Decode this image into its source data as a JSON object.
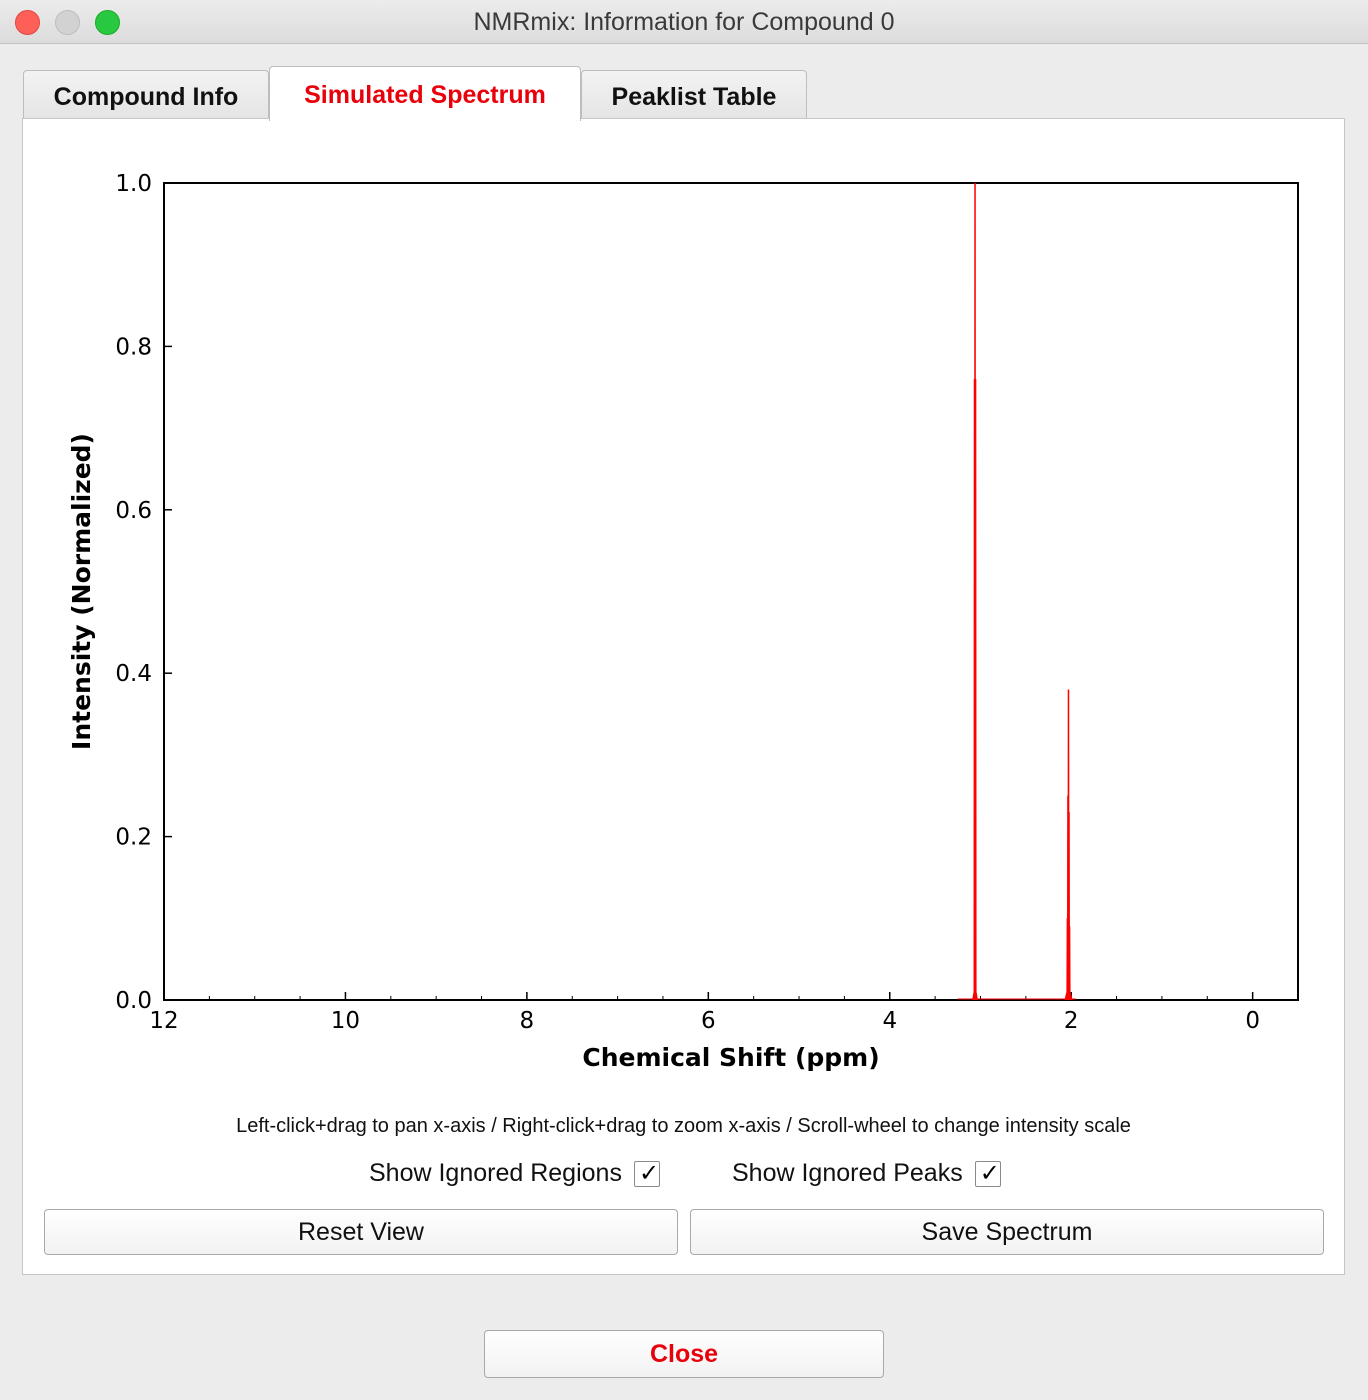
{
  "window": {
    "title": "NMRmix: Information for Compound 0"
  },
  "tabs": [
    {
      "label": "Compound Info",
      "active": false
    },
    {
      "label": "Simulated Spectrum",
      "active": true
    },
    {
      "label": "Peaklist Table",
      "active": false
    }
  ],
  "chart_data": {
    "type": "line",
    "xlabel": "Chemical Shift (ppm)",
    "ylabel": "Intensity (Normalized)",
    "xlim": [
      12,
      -0.5
    ],
    "ylim": [
      0.0,
      1.0
    ],
    "x_ticks": [
      "12",
      "10",
      "8",
      "6",
      "4",
      "2",
      "0"
    ],
    "y_ticks": [
      "0.0",
      "0.2",
      "0.4",
      "0.6",
      "0.8",
      "1.0"
    ],
    "line_color": "#ff0000",
    "grid": false,
    "peaks": [
      {
        "shift": 3.06,
        "intensity": 1.0,
        "components": [
          0.76,
          1.0,
          0.76
        ]
      },
      {
        "shift": 2.03,
        "intensity": 0.38,
        "components": [
          0.1,
          0.25,
          0.38,
          0.23,
          0.09
        ]
      }
    ]
  },
  "hint": "Left-click+drag to pan x-axis / Right-click+drag to zoom x-axis / Scroll-wheel to change intensity scale",
  "options": {
    "show_ignored_regions": {
      "label": "Show Ignored Regions",
      "checked": true,
      "mark": "✓"
    },
    "show_ignored_peaks": {
      "label": "Show Ignored Peaks",
      "checked": true,
      "mark": "✓"
    }
  },
  "buttons": {
    "reset_view": "Reset View",
    "save_spectrum": "Save Spectrum",
    "close": "Close"
  }
}
